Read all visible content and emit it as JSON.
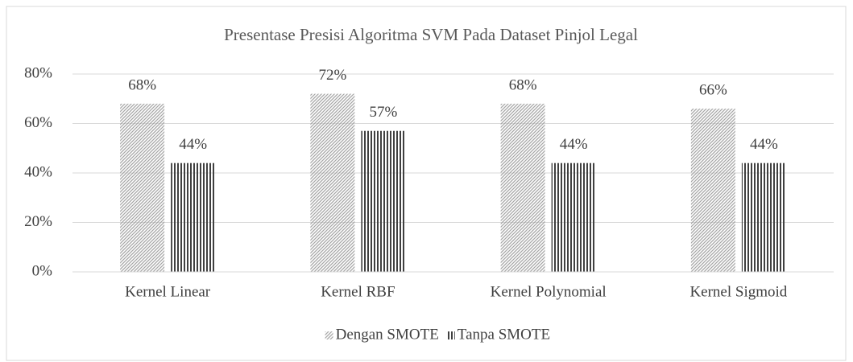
{
  "chart_data": {
    "type": "bar",
    "title": "Presentase Presisi Algoritma SVM Pada Dataset Pinjol Legal",
    "categories": [
      "Kernel Linear",
      "Kernel RBF",
      "Kernel Polynomial",
      "Kernel Sigmoid"
    ],
    "series": [
      {
        "name": "Dengan SMOTE",
        "color": "#a6a6a6",
        "values": [
          68,
          72,
          68,
          66
        ],
        "value_labels": [
          "68%",
          "72%",
          "68%",
          "66%"
        ]
      },
      {
        "name": "Tanpa SMOTE",
        "color": "#404040",
        "values": [
          44,
          57,
          44,
          44
        ],
        "value_labels": [
          "44%",
          "57%",
          "44%",
          "44%"
        ]
      }
    ],
    "ylim": [
      0,
      80
    ],
    "yticks": [
      {
        "value": 0,
        "label": "0%"
      },
      {
        "value": 20,
        "label": "20%"
      },
      {
        "value": 40,
        "label": "40%"
      },
      {
        "value": 60,
        "label": "60%"
      },
      {
        "value": 80,
        "label": "80%"
      }
    ],
    "grid": true,
    "legend": "bottom"
  }
}
